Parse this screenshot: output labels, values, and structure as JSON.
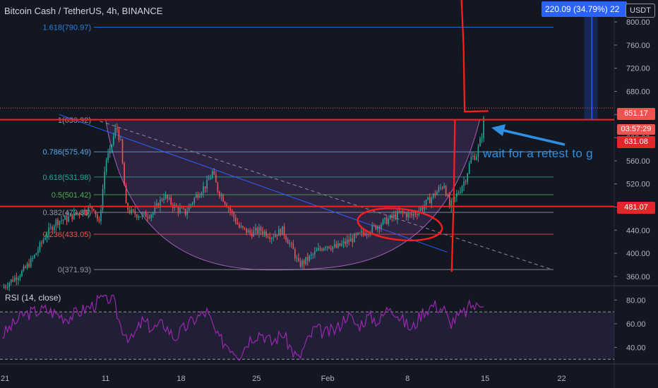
{
  "title": "Bitcoin Cash / TetherUS, 4h, BINANCE",
  "rsi_title": "RSI (14, close)",
  "measure_label": "220.09 (34.79%) 22",
  "unit": "USDT",
  "annotation": "wait for a retest to g",
  "tags": {
    "last_price": "651.17",
    "countdown": "03:57:29",
    "level_high": "631.08",
    "level_low": "481.07"
  },
  "colors": {
    "background": "#131722",
    "up": "#26a69a",
    "down": "#ef5350",
    "red_line": "#ff1e1e",
    "trend": "#2962ff",
    "arrow": "#2e8fe3",
    "rsi": "#9c27b0",
    "cup": "#a65dbf"
  },
  "chart_data": [
    {
      "type": "candlestick",
      "symbol": "Bitcoin Cash / TetherUS",
      "interval": "4h",
      "exchange": "BINANCE",
      "x_tick_labels": [
        "21",
        "11",
        "18",
        "25",
        "Feb",
        "8",
        "15",
        "22"
      ],
      "y_tick_labels": [
        "360.00",
        "400.00",
        "440.00",
        "480.00",
        "520.00",
        "560.00",
        "600.00",
        "640.00",
        "680.00",
        "720.00",
        "760.00",
        "800.00"
      ],
      "ylim": [
        344,
        838
      ],
      "grid": false,
      "last_price": 651.17,
      "horizontal_levels": [
        631.08,
        481.07
      ],
      "fibonacci": [
        {
          "ratio": "1.618",
          "value": 790.97,
          "label": "1.618(790.97)",
          "color": "#2a7de1"
        },
        {
          "ratio": "1",
          "value": 630.92,
          "label": "1(630.92)",
          "color": "#9598a1"
        },
        {
          "ratio": "0.786",
          "value": 575.49,
          "label": "0.786(575.49)",
          "color": "#5aa9e6"
        },
        {
          "ratio": "0.618",
          "value": 531.98,
          "label": "0.618(531.98)",
          "color": "#26a69a"
        },
        {
          "ratio": "0.5",
          "value": 501.42,
          "label": "0.5(501.42)",
          "color": "#4caf50"
        },
        {
          "ratio": "0.382",
          "value": 470.86,
          "label": "0.382(470.86)",
          "color": "#9598a1"
        },
        {
          "ratio": "0.236",
          "value": 433.05,
          "label": "0.236(433.05)",
          "color": "#ef5350"
        },
        {
          "ratio": "0",
          "value": 371.93,
          "label": "0(371.93)",
          "color": "#9598a1"
        }
      ],
      "price_path": [
        [
          0,
          340
        ],
        [
          2,
          370
        ],
        [
          3,
          395
        ],
        [
          4,
          430
        ],
        [
          5,
          455
        ],
        [
          6,
          460
        ],
        [
          7,
          470
        ],
        [
          8.5,
          480
        ],
        [
          9,
          450
        ],
        [
          9.6,
          560
        ],
        [
          10,
          575
        ],
        [
          10.3,
          600
        ],
        [
          10.6,
          620
        ],
        [
          11,
          590
        ],
        [
          11.5,
          480
        ],
        [
          12,
          470
        ],
        [
          13,
          465
        ],
        [
          14,
          470
        ],
        [
          15,
          500
        ],
        [
          16,
          480
        ],
        [
          17,
          470
        ],
        [
          18,
          500
        ],
        [
          19,
          520
        ],
        [
          19.5,
          540
        ],
        [
          20,
          510
        ],
        [
          21,
          480
        ],
        [
          22,
          445
        ],
        [
          23,
          435
        ],
        [
          24,
          440
        ],
        [
          25,
          430
        ],
        [
          26,
          440
        ],
        [
          27,
          405
        ],
        [
          27.5,
          380
        ],
        [
          28,
          385
        ],
        [
          29,
          400
        ],
        [
          30,
          415
        ],
        [
          31,
          410
        ],
        [
          32,
          420
        ],
        [
          33,
          430
        ],
        [
          34,
          440
        ],
        [
          35,
          450
        ],
        [
          36,
          460
        ],
        [
          37,
          470
        ],
        [
          38,
          465
        ],
        [
          39,
          480
        ],
        [
          40,
          500
        ],
        [
          41,
          520
        ],
        [
          41.5,
          480
        ],
        [
          42,
          495
        ],
        [
          43,
          530
        ],
        [
          43.5,
          565
        ],
        [
          44,
          570
        ],
        [
          44.5,
          605
        ],
        [
          44.8,
          650
        ]
      ]
    },
    {
      "type": "line",
      "name": "RSI (14, close)",
      "y_tick_labels": [
        "40.00",
        "60.00",
        "80.00"
      ],
      "ylim": [
        26.6,
        90.3
      ],
      "guide_levels": [
        70,
        30
      ],
      "rsi_path": [
        [
          0,
          50
        ],
        [
          2,
          68
        ],
        [
          4,
          72
        ],
        [
          6,
          65
        ],
        [
          8.5,
          76
        ],
        [
          9.5,
          83
        ],
        [
          10.3,
          80
        ],
        [
          11,
          58
        ],
        [
          12,
          46
        ],
        [
          13,
          62
        ],
        [
          14,
          56
        ],
        [
          15,
          60
        ],
        [
          16,
          48
        ],
        [
          17,
          57
        ],
        [
          18,
          65
        ],
        [
          19,
          70
        ],
        [
          20,
          48
        ],
        [
          21,
          42
        ],
        [
          22,
          34
        ],
        [
          23,
          48
        ],
        [
          24,
          53
        ],
        [
          25,
          44
        ],
        [
          26,
          52
        ],
        [
          27,
          36
        ],
        [
          27.5,
          30
        ],
        [
          28,
          40
        ],
        [
          29,
          56
        ],
        [
          30,
          52
        ],
        [
          31,
          55
        ],
        [
          32,
          68
        ],
        [
          33,
          58
        ],
        [
          34,
          66
        ],
        [
          35,
          62
        ],
        [
          36,
          76
        ],
        [
          37,
          64
        ],
        [
          38,
          55
        ],
        [
          39,
          70
        ],
        [
          40,
          76
        ],
        [
          41,
          72
        ],
        [
          41.5,
          60
        ],
        [
          42,
          64
        ],
        [
          43,
          70
        ],
        [
          43.5,
          76
        ],
        [
          44,
          74
        ],
        [
          44.5,
          79
        ],
        [
          44.8,
          80
        ]
      ]
    }
  ]
}
